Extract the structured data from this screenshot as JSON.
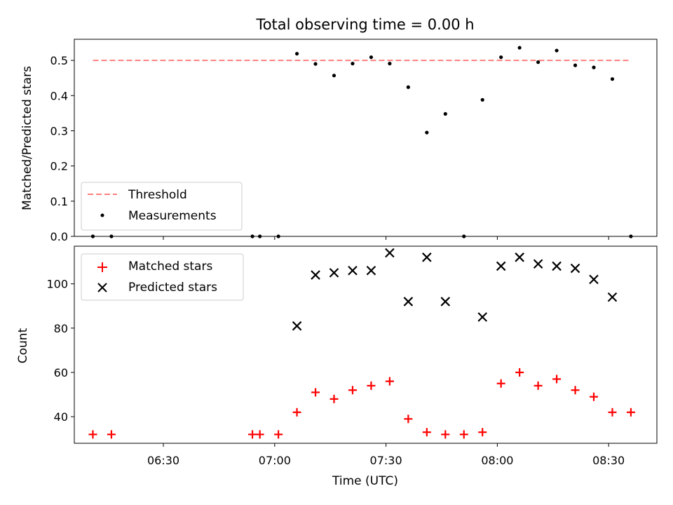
{
  "chart_data": [
    {
      "type": "scatter",
      "title": "Total observing time = 0.00 h",
      "xlabel": "",
      "ylabel": "Matched/Predicted stars",
      "ylim": [
        0,
        0.56
      ],
      "yticks": [
        0.0,
        0.1,
        0.2,
        0.3,
        0.4,
        0.5
      ],
      "ytick_labels": [
        "0.0",
        "0.1",
        "0.2",
        "0.3",
        "0.4",
        "0.5"
      ],
      "xlim": [
        "06:06",
        "08:43"
      ],
      "legend_position": "lower-left",
      "series": [
        {
          "name": "Threshold",
          "kind": "line",
          "color": "#ff7f7f",
          "style": "dashed",
          "x": [
            "06:11",
            "08:36"
          ],
          "y": [
            0.5,
            0.5
          ]
        },
        {
          "name": "Measurements",
          "kind": "scatter",
          "marker": "dot",
          "color": "#000000",
          "x": [
            "06:11",
            "06:16",
            "06:54",
            "06:56",
            "07:01",
            "07:06",
            "07:11",
            "07:16",
            "07:21",
            "07:26",
            "07:31",
            "07:36",
            "07:41",
            "07:46",
            "07:51",
            "07:56",
            "08:01",
            "08:06",
            "08:11",
            "08:16",
            "08:21",
            "08:26",
            "08:31",
            "08:36"
          ],
          "y": [
            0,
            0,
            0,
            0,
            0,
            0.519,
            0.49,
            0.457,
            0.491,
            0.509,
            0.491,
            0.424,
            0.295,
            0.348,
            0,
            0.388,
            0.509,
            0.536,
            0.495,
            0.528,
            0.486,
            0.48,
            0.447,
            0
          ]
        }
      ]
    },
    {
      "type": "scatter",
      "title": "",
      "xlabel": "Time (UTC)",
      "ylabel": "Count",
      "ylim": [
        28,
        117
      ],
      "yticks": [
        40,
        60,
        80,
        100
      ],
      "ytick_labels": [
        "40",
        "60",
        "80",
        "100"
      ],
      "xlim": [
        "06:06",
        "08:43"
      ],
      "xticks": [
        "06:30",
        "07:00",
        "07:30",
        "08:00",
        "08:30"
      ],
      "xtick_labels": [
        "06:30",
        "07:00",
        "07:30",
        "08:00",
        "08:30"
      ],
      "legend_position": "upper-left",
      "series": [
        {
          "name": "Matched stars",
          "kind": "scatter",
          "marker": "plus",
          "color": "#ff0000",
          "x": [
            "06:11",
            "06:16",
            "06:54",
            "06:56",
            "07:01",
            "07:06",
            "07:11",
            "07:16",
            "07:21",
            "07:26",
            "07:31",
            "07:36",
            "07:41",
            "07:46",
            "07:51",
            "07:56",
            "08:01",
            "08:06",
            "08:11",
            "08:16",
            "08:21",
            "08:26",
            "08:31",
            "08:36"
          ],
          "y": [
            32,
            32,
            32,
            32,
            32,
            42,
            51,
            48,
            52,
            54,
            56,
            39,
            33,
            32,
            32,
            33,
            55,
            60,
            54,
            57,
            52,
            49,
            42,
            42
          ]
        },
        {
          "name": "Predicted stars",
          "kind": "scatter",
          "marker": "x",
          "color": "#000000",
          "x": [
            "07:06",
            "07:11",
            "07:16",
            "07:21",
            "07:26",
            "07:31",
            "07:36",
            "07:41",
            "07:46",
            "07:56",
            "08:01",
            "08:06",
            "08:11",
            "08:16",
            "08:21",
            "08:26",
            "08:31"
          ],
          "y": [
            81,
            104,
            105,
            106,
            106,
            114,
            92,
            112,
            92,
            85,
            108,
            112,
            109,
            108,
            107,
            102,
            94
          ]
        }
      ]
    }
  ]
}
